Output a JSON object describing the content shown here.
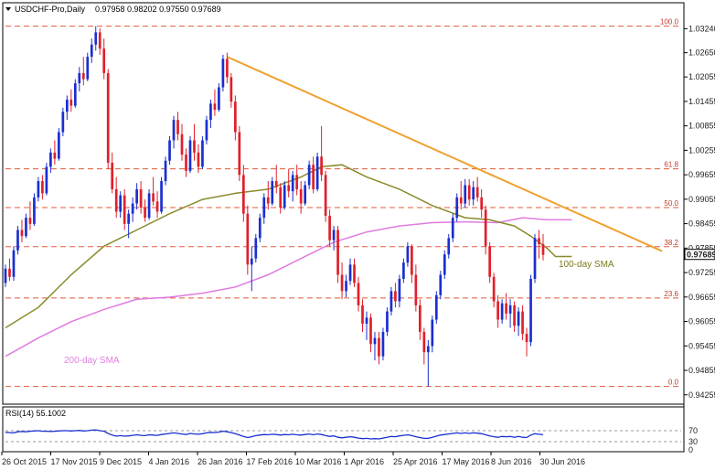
{
  "header": {
    "symbol_label": "USDCHF-Pro,Daily",
    "ohlc": "0.97958 0.98202 0.97550 0.97689"
  },
  "chart_data": {
    "type": "candlestick",
    "price_axis": {
      "ticks": [
        "1.03240",
        "1.02650",
        "1.02055",
        "1.01455",
        "1.00855",
        "1.00255",
        "0.99655",
        "0.99055",
        "0.98455",
        "0.97855",
        "0.97255",
        "0.96655",
        "0.96055",
        "0.95455",
        "0.94855",
        "0.94255"
      ],
      "range": [
        0.9425,
        1.0345
      ]
    },
    "time_axis": {
      "labels": [
        "26 Oct 2015",
        "17 Nov 2015",
        "9 Dec 2015",
        "4 Jan 2016",
        "26 Jan 2016",
        "17 Feb 2016",
        "10 Mar 2016",
        "1 Apr 2016",
        "25 Apr 2016",
        "17 May 2016",
        "8 Jun 2016",
        "30 Jun 2016"
      ]
    },
    "current_price": "0.97689",
    "fib_levels": [
      {
        "label": "100.0",
        "value": 1.033
      },
      {
        "label": "61.8",
        "value": 0.998
      },
      {
        "label": "50.0",
        "value": 0.9885
      },
      {
        "label": "38.2",
        "value": 0.9789
      },
      {
        "label": "23.6",
        "value": 0.9663
      },
      {
        "label": "0.0",
        "value": 0.9446
      }
    ],
    "annotations": {
      "sma100": "100-day SMA",
      "sma200": "200-day SMA"
    },
    "ohlc_series": [
      [
        0.97,
        0.9745,
        0.969,
        0.9735
      ],
      [
        0.9735,
        0.976,
        0.9705,
        0.9715
      ],
      [
        0.9715,
        0.979,
        0.9705,
        0.978
      ],
      [
        0.978,
        0.984,
        0.977,
        0.983
      ],
      [
        0.983,
        0.9855,
        0.98,
        0.9815
      ],
      [
        0.9815,
        0.987,
        0.981,
        0.986
      ],
      [
        0.986,
        0.99,
        0.983,
        0.9845
      ],
      [
        0.9845,
        0.992,
        0.984,
        0.991
      ],
      [
        0.991,
        0.996,
        0.99,
        0.995
      ],
      [
        0.995,
        0.9965,
        0.9905,
        0.992
      ],
      [
        0.992,
        0.9995,
        0.9915,
        0.9985
      ],
      [
        0.9985,
        1.003,
        0.997,
        1.002
      ],
      [
        1.002,
        1.005,
        0.999,
        1.0005
      ],
      [
        1.0005,
        1.008,
        1.0,
        1.007
      ],
      [
        1.007,
        1.013,
        1.006,
        1.012
      ],
      [
        1.012,
        1.016,
        1.01,
        1.015
      ],
      [
        1.015,
        1.0175,
        1.012,
        1.0135
      ],
      [
        1.0135,
        1.02,
        1.013,
        1.019
      ],
      [
        1.019,
        1.023,
        1.017,
        1.0215
      ],
      [
        1.0215,
        1.0255,
        1.0185,
        1.02
      ],
      [
        1.02,
        1.0265,
        1.0195,
        1.0255
      ],
      [
        1.0255,
        1.03,
        1.024,
        1.0285
      ],
      [
        1.0285,
        1.033,
        1.027,
        1.0315
      ],
      [
        1.0315,
        1.0325,
        1.026,
        1.0275
      ],
      [
        1.0275,
        1.03,
        1.02,
        1.0215
      ],
      [
        1.0215,
        1.0225,
        0.998,
        0.9995
      ],
      [
        0.9995,
        1.002,
        0.992,
        0.993
      ],
      [
        0.993,
        0.996,
        0.986,
        0.9875
      ],
      [
        0.9875,
        0.9925,
        0.986,
        0.9915
      ],
      [
        0.9915,
        0.993,
        0.983,
        0.9845
      ],
      [
        0.9845,
        0.988,
        0.981,
        0.987
      ],
      [
        0.987,
        0.991,
        0.985,
        0.9895
      ],
      [
        0.9895,
        0.9945,
        0.988,
        0.993
      ],
      [
        0.993,
        0.995,
        0.987,
        0.9885
      ],
      [
        0.9885,
        0.9905,
        0.985,
        0.986
      ],
      [
        0.986,
        0.993,
        0.9855,
        0.992
      ],
      [
        0.992,
        0.996,
        0.989,
        0.99
      ],
      [
        0.99,
        0.9925,
        0.986,
        0.9875
      ],
      [
        0.9875,
        0.996,
        0.987,
        0.995
      ],
      [
        0.995,
        1.001,
        0.994,
        1.0
      ],
      [
        1.0,
        1.006,
        0.999,
        1.005
      ],
      [
        1.005,
        1.011,
        1.003,
        1.01
      ],
      [
        1.01,
        1.012,
        1.005,
        1.0065
      ],
      [
        1.0065,
        1.009,
        1.0,
        1.0015
      ],
      [
        1.0015,
        1.003,
        0.996,
        0.9975
      ],
      [
        0.9975,
        1.006,
        0.997,
        1.005
      ],
      [
        1.005,
        1.009,
        1.0,
        1.002
      ],
      [
        1.002,
        1.004,
        0.997,
        0.9985
      ],
      [
        0.9985,
        1.006,
        0.998,
        1.005
      ],
      [
        1.005,
        1.011,
        1.004,
        1.01
      ],
      [
        1.01,
        1.015,
        1.008,
        1.014
      ],
      [
        1.014,
        1.0175,
        1.011,
        1.0125
      ],
      [
        1.0125,
        1.019,
        1.012,
        1.018
      ],
      [
        1.018,
        1.026,
        1.017,
        1.025
      ],
      [
        1.025,
        1.0265,
        1.019,
        1.0205
      ],
      [
        1.0205,
        1.0215,
        1.013,
        1.0145
      ],
      [
        1.0145,
        1.016,
        1.005,
        1.007
      ],
      [
        1.007,
        1.0085,
        0.995,
        0.9965
      ],
      [
        0.9965,
        0.999,
        0.985,
        0.987
      ],
      [
        0.987,
        0.989,
        0.972,
        0.9745
      ],
      [
        0.9745,
        0.979,
        0.968,
        0.976
      ],
      [
        0.976,
        0.982,
        0.975,
        0.981
      ],
      [
        0.981,
        0.987,
        0.98,
        0.986
      ],
      [
        0.986,
        0.992,
        0.9845,
        0.991
      ],
      [
        0.991,
        0.995,
        0.988,
        0.9895
      ],
      [
        0.9895,
        0.996,
        0.989,
        0.995
      ],
      [
        0.995,
        0.999,
        0.992,
        0.9935
      ],
      [
        0.9935,
        0.9945,
        0.987,
        0.9885
      ],
      [
        0.9885,
        0.995,
        0.988,
        0.994
      ],
      [
        0.994,
        0.998,
        0.991,
        0.9925
      ],
      [
        0.9925,
        0.9975,
        0.99,
        0.9965
      ],
      [
        0.9965,
        0.999,
        0.9915,
        0.993
      ],
      [
        0.993,
        0.995,
        0.987,
        0.9895
      ],
      [
        0.9895,
        0.995,
        0.989,
        0.994
      ],
      [
        0.994,
        1.0,
        0.993,
        0.999
      ],
      [
        0.999,
        1.001,
        0.992,
        0.993
      ],
      [
        0.993,
        1.002,
        0.9925,
        1.001
      ],
      [
        1.001,
        1.0085,
        0.995,
        0.9965
      ],
      [
        0.9965,
        0.9975,
        0.985,
        0.9865
      ],
      [
        0.9865,
        0.988,
        0.979,
        0.9805
      ],
      [
        0.9805,
        0.984,
        0.978,
        0.983
      ],
      [
        0.983,
        0.984,
        0.97,
        0.972
      ],
      [
        0.972,
        0.975,
        0.966,
        0.968
      ],
      [
        0.968,
        0.972,
        0.9665,
        0.9705
      ],
      [
        0.9705,
        0.976,
        0.9695,
        0.9745
      ],
      [
        0.9745,
        0.976,
        0.969,
        0.97
      ],
      [
        0.97,
        0.9715,
        0.963,
        0.9645
      ],
      [
        0.9645,
        0.966,
        0.958,
        0.96
      ],
      [
        0.96,
        0.963,
        0.956,
        0.9615
      ],
      [
        0.9615,
        0.9625,
        0.953,
        0.955
      ],
      [
        0.955,
        0.958,
        0.951,
        0.9565
      ],
      [
        0.9565,
        0.958,
        0.95,
        0.952
      ],
      [
        0.952,
        0.959,
        0.951,
        0.958
      ],
      [
        0.958,
        0.964,
        0.957,
        0.963
      ],
      [
        0.963,
        0.969,
        0.962,
        0.968
      ],
      [
        0.968,
        0.97,
        0.964,
        0.9655
      ],
      [
        0.9655,
        0.972,
        0.964,
        0.971
      ],
      [
        0.971,
        0.976,
        0.97,
        0.975
      ],
      [
        0.975,
        0.98,
        0.974,
        0.979
      ],
      [
        0.979,
        0.9795,
        0.97,
        0.972
      ],
      [
        0.972,
        0.9745,
        0.963,
        0.9645
      ],
      [
        0.9645,
        0.966,
        0.956,
        0.958
      ],
      [
        0.958,
        0.959,
        0.95,
        0.953
      ],
      [
        0.953,
        0.956,
        0.9446,
        0.9545
      ],
      [
        0.9545,
        0.962,
        0.953,
        0.961
      ],
      [
        0.961,
        0.968,
        0.96,
        0.967
      ],
      [
        0.967,
        0.973,
        0.966,
        0.972
      ],
      [
        0.972,
        0.978,
        0.971,
        0.977
      ],
      [
        0.977,
        0.982,
        0.976,
        0.981
      ],
      [
        0.981,
        0.987,
        0.98,
        0.986
      ],
      [
        0.986,
        0.992,
        0.985,
        0.991
      ],
      [
        0.991,
        0.995,
        0.988,
        0.9895
      ],
      [
        0.9895,
        0.9955,
        0.9885,
        0.994
      ],
      [
        0.994,
        0.9955,
        0.989,
        0.9905
      ],
      [
        0.9905,
        0.995,
        0.989,
        0.9935
      ],
      [
        0.9935,
        0.996,
        0.99,
        0.991
      ],
      [
        0.991,
        0.993,
        0.986,
        0.988
      ],
      [
        0.988,
        0.989,
        0.977,
        0.979
      ],
      [
        0.979,
        0.98,
        0.97,
        0.9715
      ],
      [
        0.9715,
        0.9725,
        0.964,
        0.9655
      ],
      [
        0.9655,
        0.967,
        0.959,
        0.961
      ],
      [
        0.961,
        0.966,
        0.96,
        0.965
      ],
      [
        0.965,
        0.9675,
        0.961,
        0.9625
      ],
      [
        0.9625,
        0.966,
        0.959,
        0.9645
      ],
      [
        0.9645,
        0.9655,
        0.958,
        0.9595
      ],
      [
        0.9595,
        0.964,
        0.957,
        0.963
      ],
      [
        0.963,
        0.9645,
        0.956,
        0.9575
      ],
      [
        0.9575,
        0.959,
        0.952,
        0.9555
      ],
      [
        0.9555,
        0.972,
        0.9545,
        0.971
      ],
      [
        0.971,
        0.982,
        0.97,
        0.981
      ],
      [
        0.981,
        0.983,
        0.976,
        0.9795
      ],
      [
        0.9795,
        0.982,
        0.9755,
        0.9769
      ]
    ],
    "sma100_series": [
      [
        0,
        0.959
      ],
      [
        8,
        0.964
      ],
      [
        16,
        0.972
      ],
      [
        24,
        0.979
      ],
      [
        32,
        0.983
      ],
      [
        40,
        0.987
      ],
      [
        48,
        0.9905
      ],
      [
        56,
        0.992
      ],
      [
        64,
        0.993
      ],
      [
        72,
        0.996
      ],
      [
        77,
        0.9985
      ],
      [
        82,
        0.999
      ],
      [
        88,
        0.996
      ],
      [
        96,
        0.993
      ],
      [
        104,
        0.989
      ],
      [
        112,
        0.986
      ],
      [
        118,
        0.9855
      ],
      [
        124,
        0.984
      ],
      [
        128,
        0.9815
      ],
      [
        132,
        0.9785
      ],
      [
        134,
        0.9765
      ],
      [
        138,
        0.9765
      ]
    ],
    "sma200_series": [
      [
        0,
        0.952
      ],
      [
        8,
        0.9565
      ],
      [
        16,
        0.9605
      ],
      [
        24,
        0.9635
      ],
      [
        32,
        0.966
      ],
      [
        40,
        0.9665
      ],
      [
        48,
        0.9675
      ],
      [
        56,
        0.969
      ],
      [
        64,
        0.972
      ],
      [
        72,
        0.976
      ],
      [
        80,
        0.98
      ],
      [
        88,
        0.9825
      ],
      [
        96,
        0.984
      ],
      [
        104,
        0.9848
      ],
      [
        112,
        0.985
      ],
      [
        120,
        0.9848
      ],
      [
        126,
        0.986
      ],
      [
        132,
        0.9855
      ],
      [
        138,
        0.9855
      ]
    ],
    "trendline": [
      [
        54,
        1.0255
      ],
      [
        160,
        0.9778
      ]
    ],
    "rsi": {
      "label": "RSI(14) 55.1002",
      "ticks": [
        "70",
        "30",
        "0"
      ],
      "range": [
        0,
        100
      ],
      "values": [
        64,
        63,
        62,
        66,
        67,
        66,
        68,
        69,
        70,
        68,
        68,
        67,
        68,
        69,
        70,
        70,
        69,
        70,
        71,
        69,
        70,
        72,
        73,
        70,
        68,
        60,
        54,
        50,
        52,
        50,
        51,
        53,
        55,
        53,
        52,
        55,
        54,
        53,
        56,
        58,
        60,
        62,
        60,
        58,
        56,
        60,
        58,
        57,
        59,
        62,
        64,
        63,
        65,
        68,
        66,
        63,
        59,
        54,
        49,
        45,
        48,
        52,
        54,
        56,
        55,
        57,
        56,
        54,
        56,
        55,
        57,
        55,
        54,
        56,
        58,
        55,
        58,
        56,
        52,
        49,
        51,
        46,
        44,
        46,
        48,
        46,
        43,
        41,
        42,
        40,
        41,
        40,
        43,
        46,
        49,
        48,
        51,
        53,
        55,
        52,
        48,
        45,
        42,
        42,
        46,
        50,
        54,
        56,
        58,
        60,
        62,
        60,
        62,
        60,
        62,
        61,
        59,
        55,
        51,
        48,
        46,
        49,
        48,
        49,
        46,
        49,
        46,
        45,
        54,
        59,
        57,
        55
      ]
    }
  }
}
